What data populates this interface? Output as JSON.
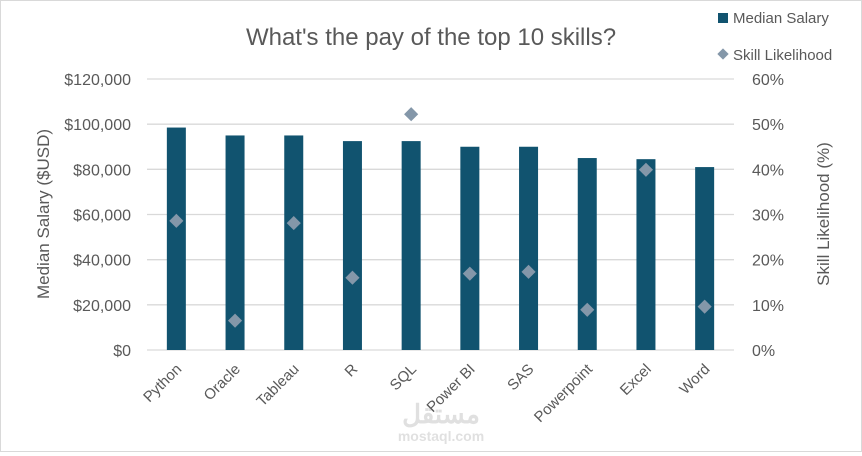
{
  "chart_data": {
    "type": "bar",
    "title": "What's the pay of the top 10 skills?",
    "categories": [
      "Python",
      "Oracle",
      "Tableau",
      "R",
      "SQL",
      "Power BI",
      "SAS",
      "Powerpoint",
      "Excel",
      "Word"
    ],
    "series": [
      {
        "name": "Median Salary",
        "type": "bar",
        "axis": "left",
        "color": "#11536f",
        "values": [
          98500,
          95000,
          95000,
          92500,
          92500,
          90000,
          90000,
          85000,
          84500,
          81000
        ]
      },
      {
        "name": "Skill Likelihood",
        "type": "scatter",
        "marker": "diamond",
        "axis": "right",
        "color": "#8497a9",
        "values": [
          28.6,
          6.5,
          28.1,
          16.0,
          52.2,
          16.9,
          17.3,
          8.9,
          39.9,
          9.6
        ]
      }
    ],
    "ylabel": "Median Salary ($USD)",
    "y2label": "Skill Likelihood (%)",
    "ylim": [
      0,
      120000
    ],
    "y2lim": [
      0,
      60
    ],
    "yticks": [
      "$0",
      "$20,000",
      "$40,000",
      "$60,000",
      "$80,000",
      "$100,000",
      "$120,000"
    ],
    "y2ticks": [
      "0%",
      "10%",
      "20%",
      "30%",
      "40%",
      "50%",
      "60%"
    ],
    "grid": true,
    "legend_position": "top-right"
  },
  "watermark": {
    "arabic": "مستقل",
    "latin": "mostaql.com"
  }
}
